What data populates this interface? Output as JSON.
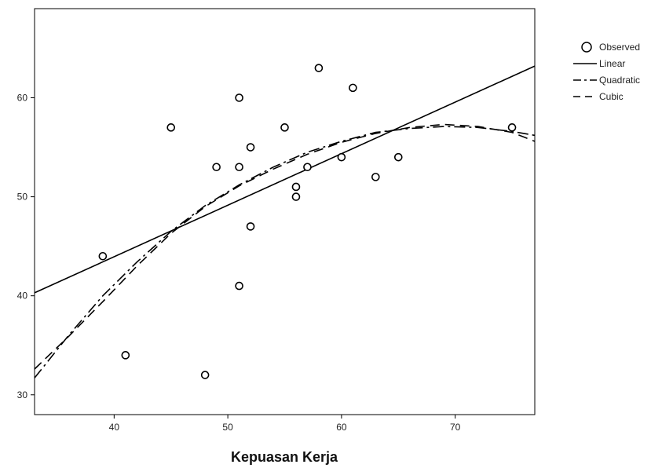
{
  "chart_data": {
    "type": "scatter",
    "title": "",
    "xlabel": "Kepuasan Kerja",
    "ylabel": "",
    "xlim": [
      33,
      77
    ],
    "ylim": [
      28,
      69
    ],
    "x_ticks": [
      40,
      50,
      60,
      70
    ],
    "y_ticks": [
      30,
      40,
      50,
      60
    ],
    "grid": false,
    "legend_position": "top-right outside plot",
    "points": [
      {
        "x": 39,
        "y": 44
      },
      {
        "x": 41,
        "y": 34
      },
      {
        "x": 45,
        "y": 57
      },
      {
        "x": 48,
        "y": 32
      },
      {
        "x": 49,
        "y": 53
      },
      {
        "x": 51,
        "y": 60
      },
      {
        "x": 51,
        "y": 53
      },
      {
        "x": 51,
        "y": 41
      },
      {
        "x": 52,
        "y": 55
      },
      {
        "x": 52,
        "y": 47
      },
      {
        "x": 55,
        "y": 57
      },
      {
        "x": 56,
        "y": 51
      },
      {
        "x": 56,
        "y": 50
      },
      {
        "x": 57,
        "y": 53
      },
      {
        "x": 58,
        "y": 63
      },
      {
        "x": 60,
        "y": 54
      },
      {
        "x": 61,
        "y": 61
      },
      {
        "x": 63,
        "y": 52
      },
      {
        "x": 65,
        "y": 54
      },
      {
        "x": 75,
        "y": 57
      }
    ],
    "series": [
      {
        "name": "Linear",
        "dash": "solid",
        "x": [
          33,
          77
        ],
        "y": [
          40.3,
          63.2
        ]
      },
      {
        "name": "Quadratic",
        "dash": "dashdot",
        "x": [
          33,
          36,
          39,
          42,
          45,
          48,
          51,
          54,
          57,
          60,
          63,
          66,
          69,
          72,
          75,
          77
        ],
        "y": [
          31.7,
          36.0,
          40.0,
          43.4,
          46.5,
          49.1,
          51.2,
          53.0,
          54.5,
          55.6,
          56.5,
          56.9,
          57.1,
          57.0,
          56.6,
          56.2
        ]
      },
      {
        "name": "Cubic",
        "dash": "dashed",
        "x": [
          33,
          36,
          39,
          42,
          45,
          48,
          51,
          54,
          57,
          60,
          63,
          66,
          69,
          72,
          75,
          77
        ],
        "y": [
          32.6,
          35.9,
          39.4,
          43.0,
          46.3,
          49.0,
          51.1,
          52.8,
          54.3,
          55.5,
          56.4,
          57.0,
          57.3,
          57.1,
          56.5,
          55.6
        ]
      }
    ],
    "legend": [
      {
        "label": "Observed",
        "symbol": "circle"
      },
      {
        "label": "Linear",
        "symbol": "solid"
      },
      {
        "label": "Quadratic",
        "symbol": "dashdot"
      },
      {
        "label": "Cubic",
        "symbol": "dashed"
      }
    ]
  }
}
